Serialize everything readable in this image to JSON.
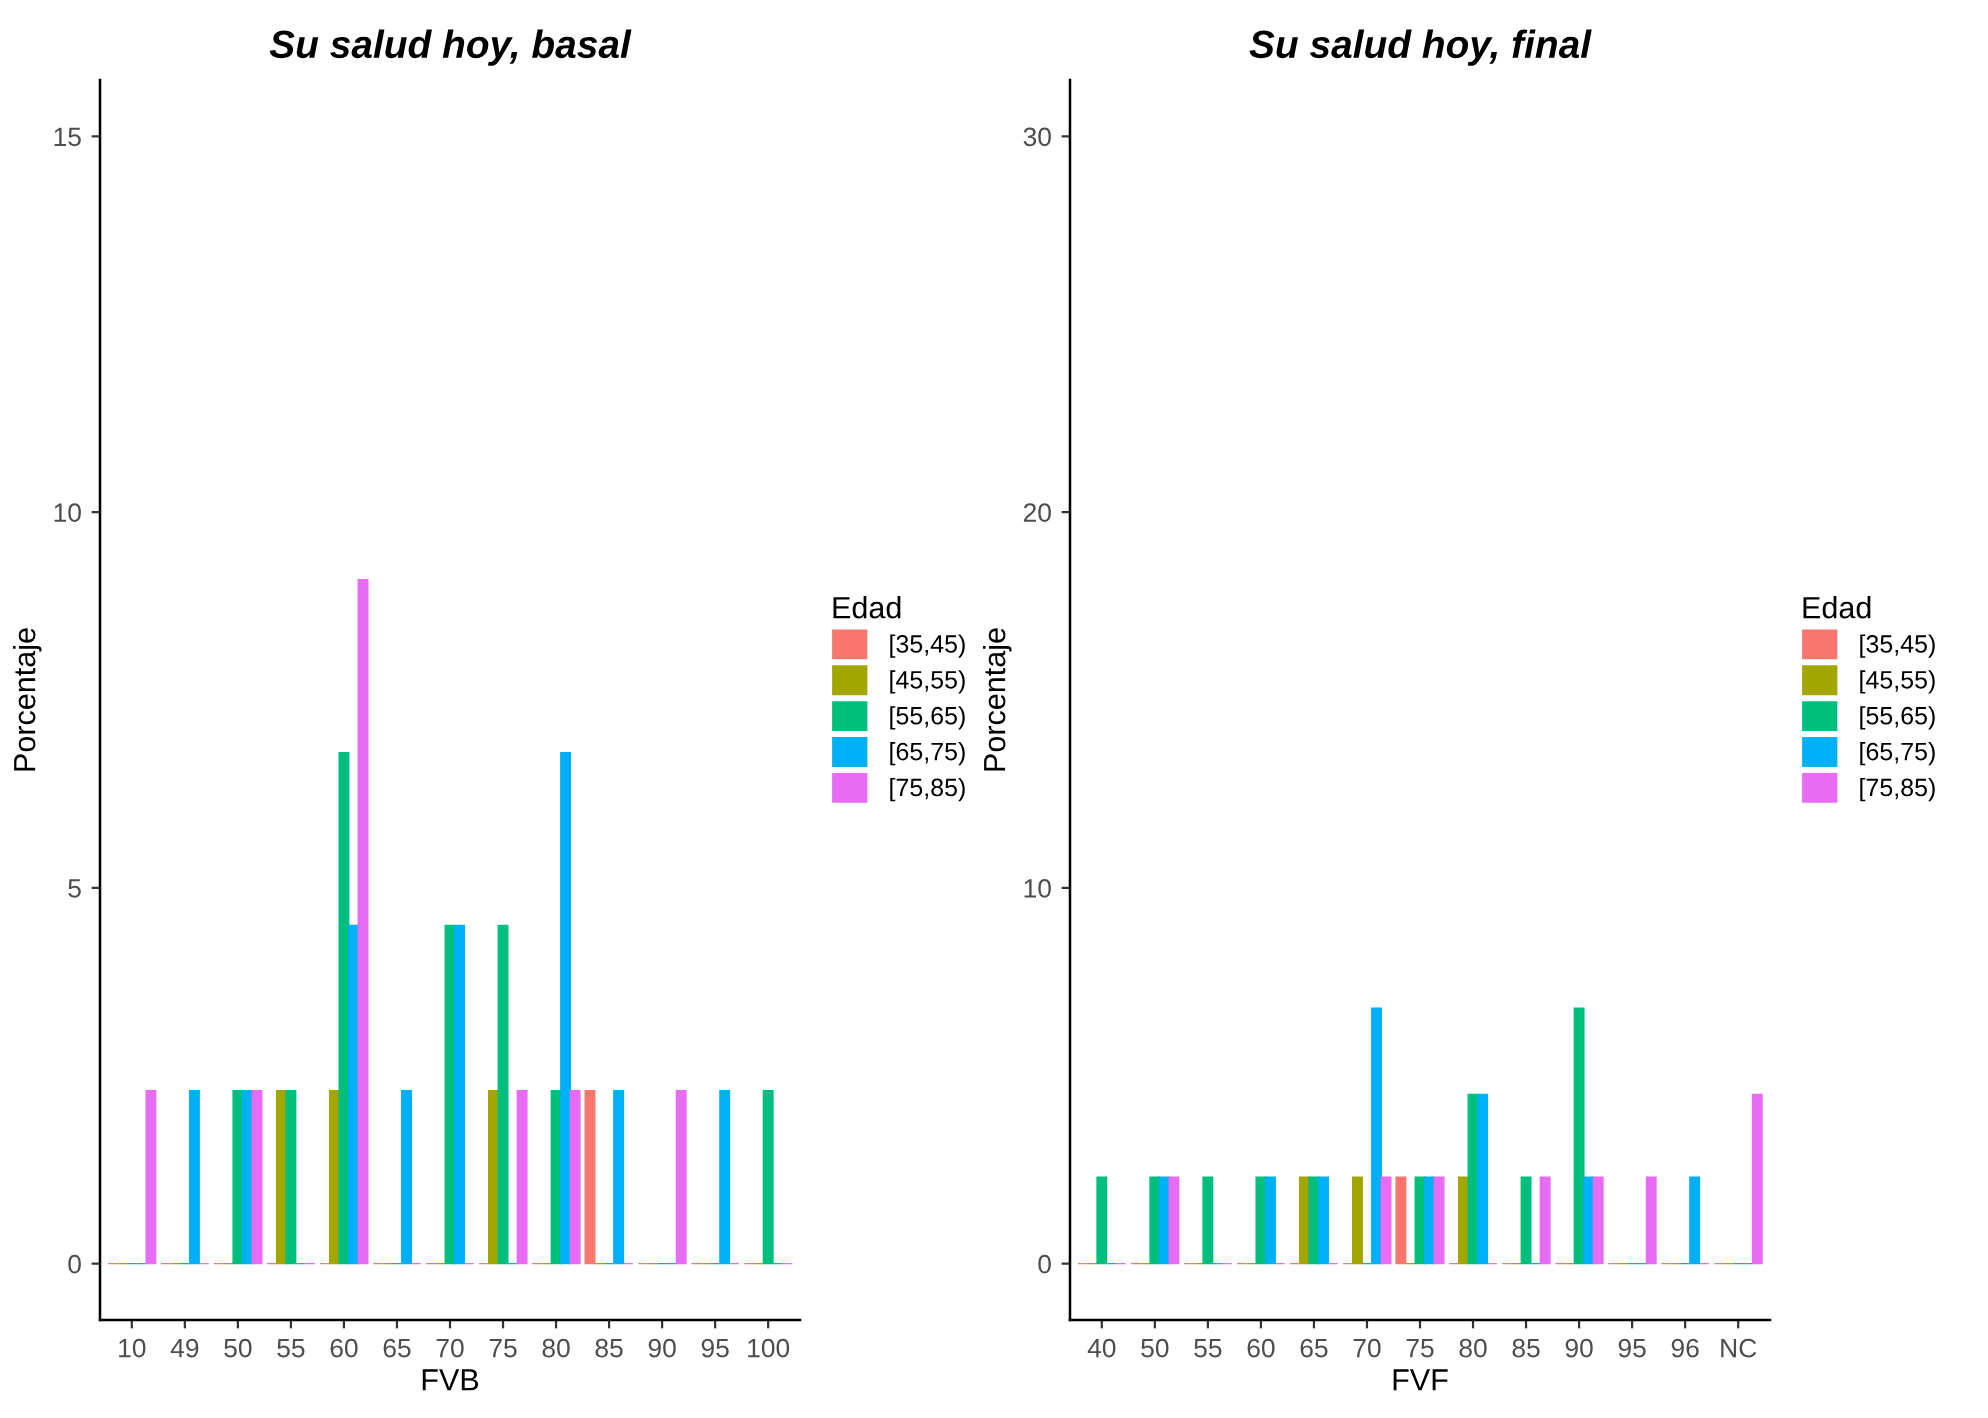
{
  "chart_data": [
    {
      "type": "bar",
      "title": "Su salud hoy, basal",
      "xlabel": "FVB",
      "ylabel": "Porcentaje",
      "legend_title": "Edad",
      "legend": "right",
      "categories": [
        "10",
        "49",
        "50",
        "55",
        "60",
        "65",
        "70",
        "75",
        "80",
        "85",
        "90",
        "95",
        "100"
      ],
      "series": [
        {
          "name": "[35,45)",
          "color": "#f8766d",
          "values": [
            0,
            0,
            0,
            0,
            0,
            0,
            0,
            0,
            0,
            2.3,
            0,
            0,
            0
          ]
        },
        {
          "name": "[45,55)",
          "color": "#a3a500",
          "values": [
            0,
            0,
            0,
            2.3,
            2.3,
            0,
            0,
            2.3,
            0,
            0,
            0,
            0,
            0
          ]
        },
        {
          "name": "[55,65)",
          "color": "#00bf7d",
          "values": [
            0,
            0,
            2.3,
            2.3,
            6.8,
            0,
            4.5,
            4.5,
            2.3,
            0,
            0,
            0,
            2.3
          ]
        },
        {
          "name": "[65,75)",
          "color": "#00b0f6",
          "values": [
            0,
            2.3,
            2.3,
            0,
            4.5,
            2.3,
            4.5,
            0,
            6.8,
            2.3,
            0,
            2.3,
            0
          ]
        },
        {
          "name": "[75,85)",
          "color": "#e76bf3",
          "values": [
            2.3,
            0,
            2.3,
            0,
            9.1,
            0,
            0,
            2.3,
            2.3,
            0,
            2.3,
            0,
            0
          ]
        }
      ],
      "ylim": [
        -0.75,
        15.75
      ],
      "yticks": [
        0,
        5,
        10,
        15
      ]
    },
    {
      "type": "bar",
      "title": "Su salud hoy, final",
      "xlabel": "FVF",
      "ylabel": "Porcentaje",
      "legend_title": "Edad",
      "legend": "right",
      "categories": [
        "40",
        "50",
        "55",
        "60",
        "65",
        "70",
        "75",
        "80",
        "85",
        "90",
        "95",
        "96",
        "NC"
      ],
      "series": [
        {
          "name": "[35,45)",
          "color": "#f8766d",
          "values": [
            0,
            0,
            0,
            0,
            0,
            0,
            2.3,
            0,
            0,
            0,
            0,
            0,
            0
          ]
        },
        {
          "name": "[45,55)",
          "color": "#a3a500",
          "values": [
            0,
            0,
            0,
            0,
            2.3,
            2.3,
            0,
            2.3,
            0,
            0,
            0,
            0,
            0
          ]
        },
        {
          "name": "[55,65)",
          "color": "#00bf7d",
          "values": [
            2.3,
            2.3,
            2.3,
            2.3,
            2.3,
            0,
            2.3,
            4.5,
            2.3,
            6.8,
            0,
            0,
            0
          ]
        },
        {
          "name": "[65,75)",
          "color": "#00b0f6",
          "values": [
            0,
            2.3,
            0,
            2.3,
            2.3,
            6.8,
            2.3,
            4.5,
            0,
            2.3,
            0,
            2.3,
            0
          ]
        },
        {
          "name": "[75,85)",
          "color": "#e76bf3",
          "values": [
            0,
            2.3,
            0,
            0,
            0,
            2.3,
            2.3,
            0,
            2.3,
            2.3,
            2.3,
            0,
            4.5
          ]
        }
      ],
      "ylim": [
        -1.5,
        31.5
      ],
      "yticks": [
        0,
        10,
        20,
        30
      ]
    }
  ]
}
